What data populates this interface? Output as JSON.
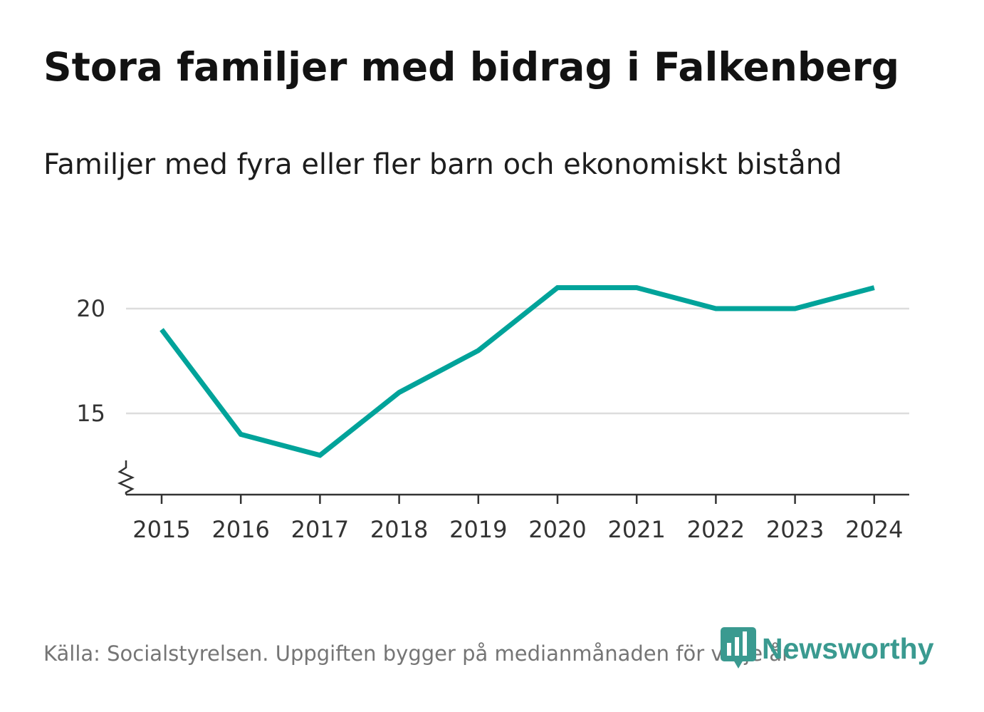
{
  "title": "Stora familjer med bidrag i Falkenberg",
  "subtitle": "Familjer med fyra eller fler barn och ekonomiskt bistånd",
  "source": "Källa: Socialstyrelsen. Uppgiften bygger på medianmånaden för varje år",
  "logo": {
    "text": "Newsworthy",
    "icon": "newsworthy-logo-icon",
    "color": "#3a9a90"
  },
  "chart_data": {
    "type": "line",
    "x": [
      2015,
      2016,
      2017,
      2018,
      2019,
      2020,
      2021,
      2022,
      2023,
      2024
    ],
    "x_tick_labels": [
      "2015",
      "2016",
      "2017",
      "2018",
      "2019",
      "2020",
      "2021",
      "2022",
      "2023",
      "2024"
    ],
    "series": [
      {
        "values": [
          19,
          14,
          13,
          16,
          18,
          21,
          21,
          20,
          20,
          21
        ],
        "color": "#00a39a"
      }
    ],
    "y_ticks": [
      15,
      20
    ],
    "y_tick_labels": [
      "15",
      "20"
    ],
    "ylim": [
      11.1,
      22
    ],
    "xlabel": "",
    "ylabel": "",
    "grid": "horizontal",
    "axis_break": true,
    "gridline_color": "#dddddd"
  }
}
